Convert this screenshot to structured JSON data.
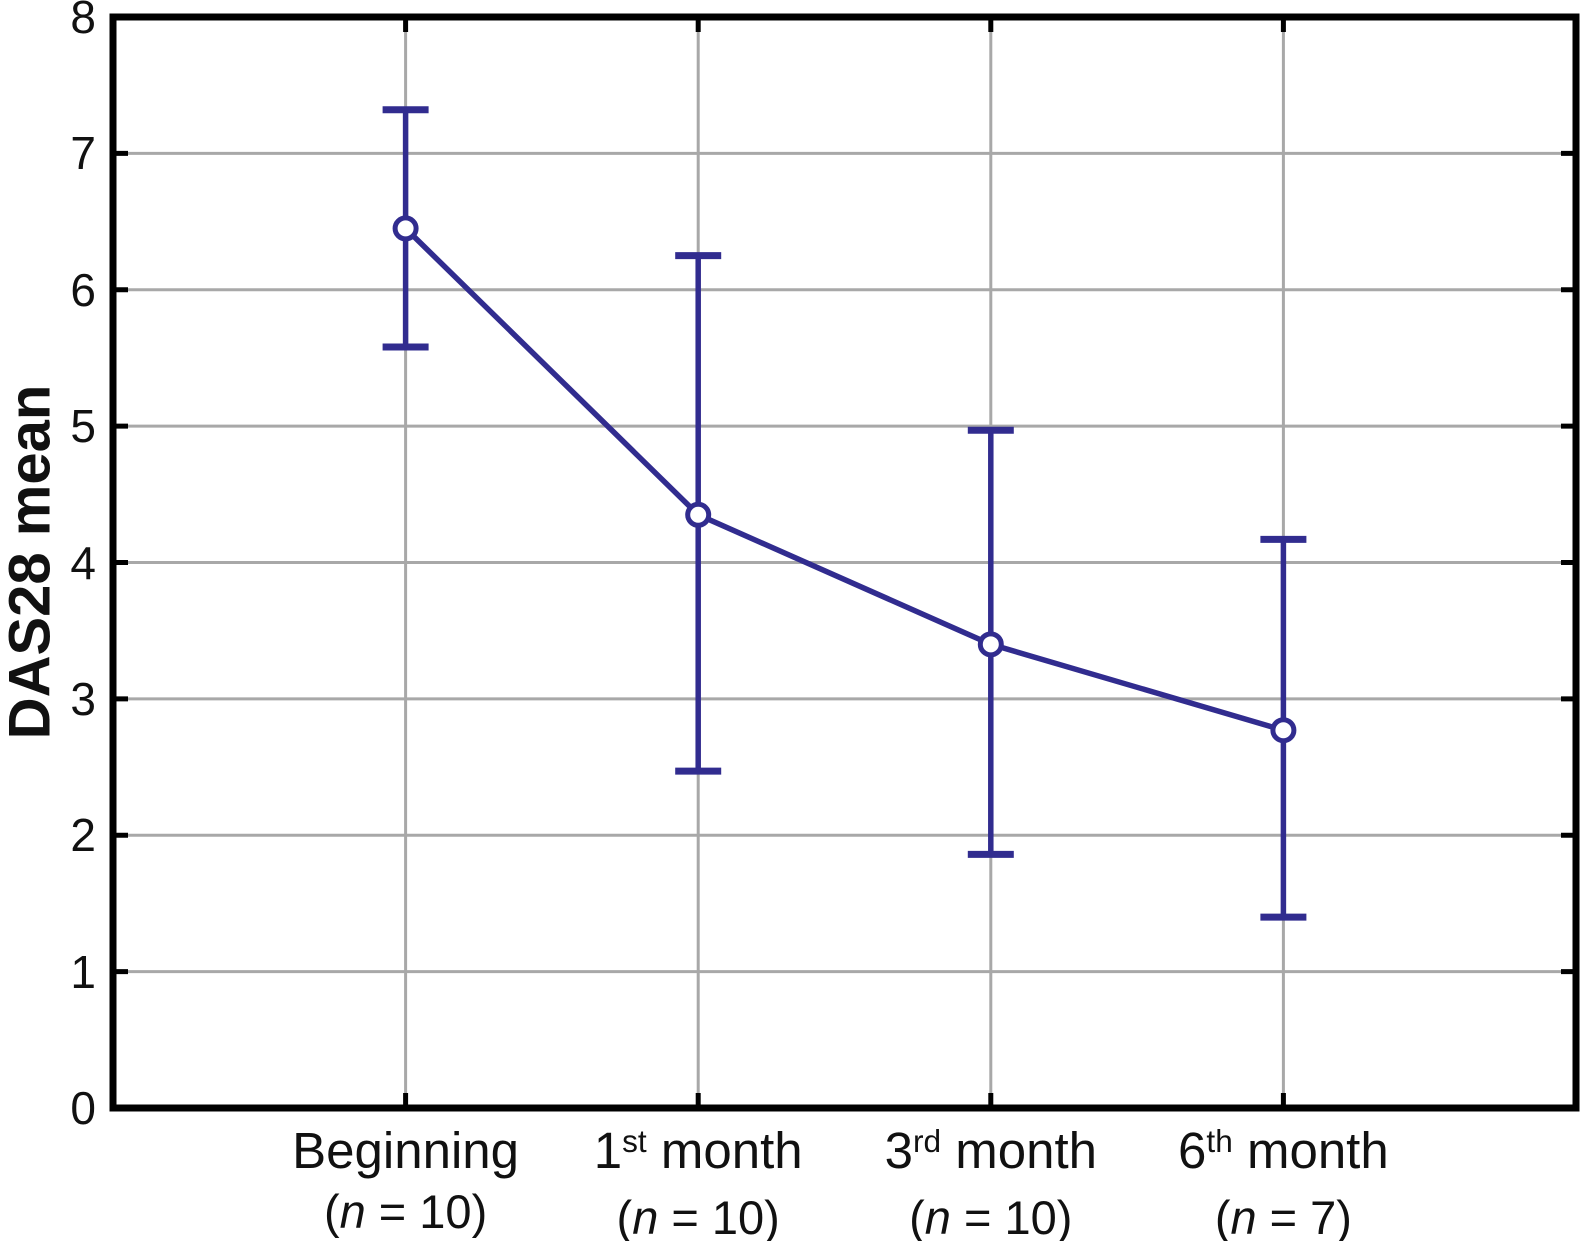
{
  "figure": {
    "background": "#ffffff"
  },
  "chart_data": {
    "type": "line",
    "title": "",
    "xlabel": "",
    "ylabel": "DAS28 mean",
    "ylim": [
      0,
      8
    ],
    "y_ticks": [
      0,
      1,
      2,
      3,
      4,
      5,
      6,
      7,
      8
    ],
    "grid": true,
    "legend": "none",
    "marker": "open-circle",
    "colors": {
      "series": "#312c8f",
      "grid": "#a8a8a8",
      "axis": "#000000",
      "text": "#111111",
      "marker_fill": "#ffffff"
    },
    "categories": [
      {
        "base": "Beginning",
        "sup": "",
        "rest": "",
        "n": "10"
      },
      {
        "base": "1",
        "sup": "st",
        "rest": " month",
        "n": "10"
      },
      {
        "base": "3",
        "sup": "rd",
        "rest": " month",
        "n": "10"
      },
      {
        "base": "6",
        "sup": "th",
        "rest": " month",
        "n": "7"
      }
    ],
    "series": [
      {
        "name": "DAS28 mean",
        "means": [
          6.45,
          4.35,
          3.4,
          2.77
        ],
        "upper": [
          7.32,
          6.25,
          4.97,
          4.17
        ],
        "lower": [
          5.58,
          2.47,
          1.86,
          1.4
        ]
      }
    ]
  }
}
